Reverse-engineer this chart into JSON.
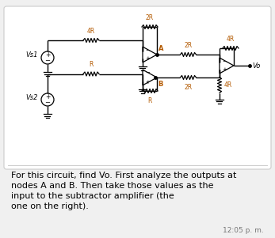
{
  "bg_color": "#f0f0f0",
  "card_bg": "#ffffff",
  "text_color": "#000000",
  "orange_color": "#b35900",
  "timestamp": "12:05 p. m.",
  "font_size_desc": 8.0,
  "font_size_ts": 6.5,
  "lines": [
    "For this circuit, find Vo. First analyze the outputs at",
    "nodes A and B. Then take those values as the",
    "input to the subtractor amplifier (the",
    "one on the right)."
  ]
}
